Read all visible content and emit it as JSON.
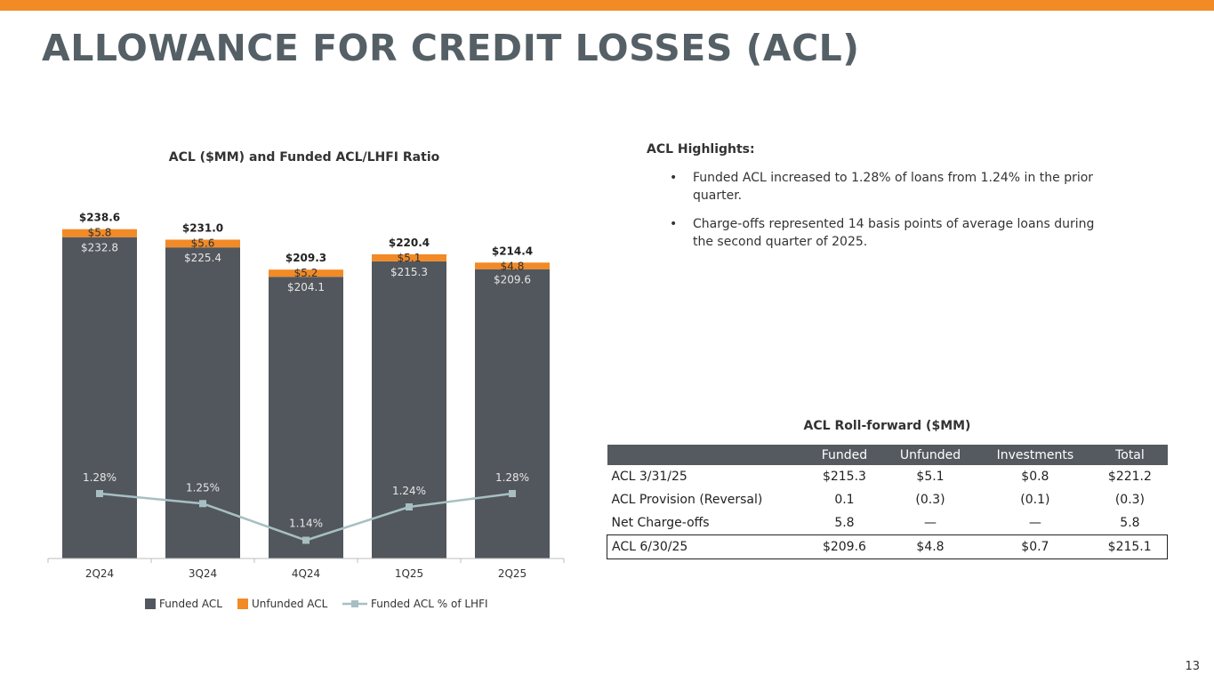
{
  "header": {
    "title": "ALLOWANCE FOR CREDIT LOSSES (ACL)",
    "accent_color": "#f28a26",
    "title_color": "#555f66"
  },
  "chart_data": {
    "type": "bar",
    "stacked": true,
    "title": "ACL ($MM) and Funded ACL/LHFI Ratio",
    "categories": [
      "2Q24",
      "3Q24",
      "4Q24",
      "1Q25",
      "2Q25"
    ],
    "series": [
      {
        "name": "Funded ACL",
        "type": "bar",
        "color": "#52575d",
        "values": [
          232.8,
          225.4,
          204.1,
          215.3,
          209.6
        ],
        "labels": [
          "$232.8",
          "$225.4",
          "$204.1",
          "$215.3",
          "$209.6"
        ]
      },
      {
        "name": "Unfunded ACL",
        "type": "bar",
        "color": "#f28a26",
        "values": [
          5.8,
          5.6,
          5.2,
          5.1,
          4.8
        ],
        "labels": [
          "$5.8",
          "$5.6",
          "$5.2",
          "$5.1",
          "$4.8"
        ]
      },
      {
        "name": "Funded ACL % of LHFI",
        "type": "line",
        "color": "#a7bfc3",
        "values": [
          1.28,
          1.25,
          1.14,
          1.24,
          1.28
        ],
        "labels": [
          "1.28%",
          "1.25%",
          "1.14%",
          "1.24%",
          "1.28%"
        ]
      }
    ],
    "totals": [
      238.6,
      231.0,
      209.3,
      220.4,
      214.4
    ],
    "total_labels": [
      "$238.6",
      "$231.0",
      "$209.3",
      "$220.4",
      "$214.4"
    ],
    "ylim": [
      0,
      250
    ],
    "y2lim": [
      1.0,
      1.4
    ],
    "grid": false,
    "legend_position": "bottom"
  },
  "highlights": {
    "title": "ACL Highlights:",
    "bullet": "•",
    "items": [
      "Funded ACL increased to 1.28% of loans from 1.24% in the prior quarter.",
      "Charge-offs represented 14 basis points of average loans during the second quarter of 2025."
    ]
  },
  "rollforward": {
    "title": "ACL Roll-forward ($MM)",
    "columns": [
      "",
      "Funded",
      "Unfunded",
      "Investments",
      "Total"
    ],
    "rows": [
      [
        "ACL  3/31/25",
        "$215.3",
        "$5.1",
        "$0.8",
        "$221.2"
      ],
      [
        "ACL Provision (Reversal)",
        "0.1",
        "(0.3)",
        "(0.1)",
        "(0.3)"
      ],
      [
        "Net Charge-offs",
        "5.8",
        "—",
        "—",
        "5.8"
      ],
      [
        "ACL  6/30/25",
        "$209.6",
        "$4.8",
        "$0.7",
        "$215.1"
      ]
    ]
  },
  "page_number": "13"
}
